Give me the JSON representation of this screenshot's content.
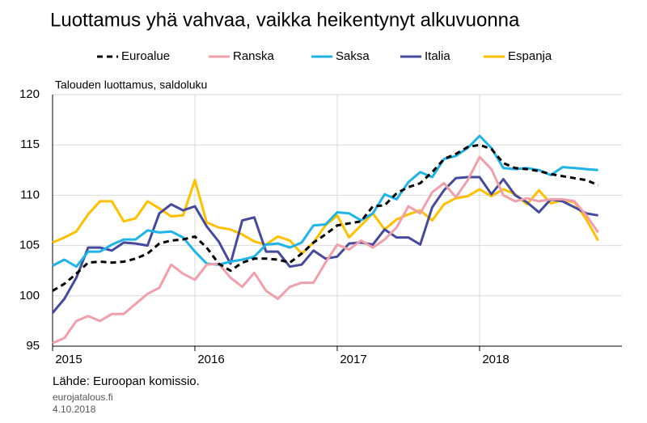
{
  "chart_data": {
    "type": "line",
    "title": "Luottamus yhä vahvaa, vaikka heikentynyt alkuvuonna",
    "y_label": "Talouden luottamus, saldoluku",
    "source": "Lähde: Euroopan komissio.",
    "site": "eurojatalous.fi",
    "date": "4.10.2018",
    "legend": "top",
    "grid": true,
    "xlim": [
      2015,
      2019
    ],
    "xticks": [
      2015,
      2016,
      2017,
      2018
    ],
    "ylim": [
      95,
      120
    ],
    "yticks": [
      95,
      100,
      105,
      110,
      115,
      120
    ],
    "x": [
      2015,
      2015.083,
      2015.167,
      2015.25,
      2015.333,
      2015.417,
      2015.5,
      2015.583,
      2015.667,
      2015.75,
      2015.833,
      2015.917,
      2016,
      2016.083,
      2016.167,
      2016.25,
      2016.333,
      2016.417,
      2016.5,
      2016.583,
      2016.667,
      2016.75,
      2016.833,
      2016.917,
      2017,
      2017.083,
      2017.167,
      2017.25,
      2017.333,
      2017.417,
      2017.5,
      2017.583,
      2017.667,
      2017.75,
      2017.833,
      2017.917,
      2018,
      2018.083,
      2018.167,
      2018.25,
      2018.333,
      2018.417,
      2018.5,
      2018.583,
      2018.667,
      2018.75,
      2018.833
    ],
    "series": [
      {
        "name": "Euroalue",
        "color": "#000000",
        "dashed": true,
        "values": [
          100.5,
          101.2,
          102.2,
          103.3,
          103.4,
          103.3,
          103.4,
          103.7,
          104.2,
          105.2,
          105.5,
          105.6,
          105.9,
          104.8,
          103.2,
          102.5,
          103.3,
          103.7,
          103.7,
          103.6,
          103.3,
          104.2,
          105.3,
          106.1,
          107.0,
          107.2,
          107.4,
          108.9,
          109.0,
          110.2,
          110.8,
          111.2,
          112.3,
          113.6,
          114.1,
          114.8,
          115.0,
          114.6,
          113.2,
          112.7,
          112.6,
          112.4,
          112.1,
          111.9,
          111.7,
          111.5,
          111.0
        ]
      },
      {
        "name": "Ranska",
        "color": "#f0a0aa",
        "dashed": false,
        "values": [
          95.3,
          95.8,
          97.5,
          98.0,
          97.5,
          98.2,
          98.2,
          99.2,
          100.2,
          100.8,
          103.1,
          102.2,
          101.6,
          103.1,
          103.2,
          101.8,
          100.9,
          102.3,
          100.5,
          99.7,
          100.9,
          101.3,
          101.3,
          103.3,
          105.1,
          104.6,
          105.5,
          104.8,
          105.6,
          106.8,
          108.9,
          108.2,
          110.3,
          111.2,
          109.8,
          111.5,
          113.8,
          112.6,
          110.0,
          109.4,
          109.7,
          109.4,
          109.6,
          109.6,
          109.4,
          108.0,
          106.3
        ]
      },
      {
        "name": "Saksa",
        "color": "#1eb4e8",
        "dashed": false,
        "values": [
          103.0,
          103.6,
          102.9,
          104.4,
          104.4,
          105.1,
          105.6,
          105.6,
          106.5,
          106.3,
          106.4,
          105.8,
          104.4,
          103.2,
          103.1,
          103.4,
          103.6,
          103.9,
          105.1,
          105.2,
          104.8,
          105.3,
          107.0,
          107.1,
          108.3,
          108.2,
          107.5,
          108.2,
          110.1,
          109.6,
          111.3,
          112.3,
          111.8,
          113.6,
          113.9,
          114.7,
          115.9,
          114.7,
          112.7,
          112.6,
          112.7,
          112.5,
          112.0,
          112.8,
          112.7,
          112.6,
          112.5
        ]
      },
      {
        "name": "Italia",
        "color": "#464a9c",
        "dashed": false,
        "values": [
          98.3,
          99.7,
          101.8,
          104.8,
          104.8,
          104.5,
          105.3,
          105.2,
          105.0,
          108.2,
          109.1,
          108.5,
          108.9,
          106.9,
          105.4,
          103.2,
          107.5,
          107.8,
          104.4,
          104.4,
          102.9,
          103.1,
          104.5,
          103.7,
          103.9,
          105.2,
          105.3,
          105.1,
          106.6,
          105.8,
          105.8,
          105.1,
          108.8,
          110.5,
          111.7,
          111.8,
          111.8,
          110.1,
          111.6,
          110.0,
          109.3,
          108.3,
          109.6,
          109.4,
          108.8,
          108.2,
          108.0
        ]
      },
      {
        "name": "Espanja",
        "color": "#ffc000",
        "dashed": false,
        "values": [
          105.3,
          105.8,
          106.4,
          108.1,
          109.4,
          109.4,
          107.4,
          107.7,
          109.4,
          108.7,
          107.9,
          108.0,
          111.5,
          107.3,
          106.8,
          106.6,
          106.1,
          105.4,
          105.1,
          105.9,
          105.5,
          104.2,
          105.3,
          107.0,
          108.0,
          105.8,
          107.0,
          108.2,
          106.6,
          107.6,
          108.1,
          108.5,
          107.5,
          109.1,
          109.7,
          109.9,
          110.6,
          109.9,
          110.6,
          110.1,
          109.1,
          110.5,
          109.2,
          109.5,
          109.3,
          107.6,
          105.5
        ]
      }
    ]
  }
}
